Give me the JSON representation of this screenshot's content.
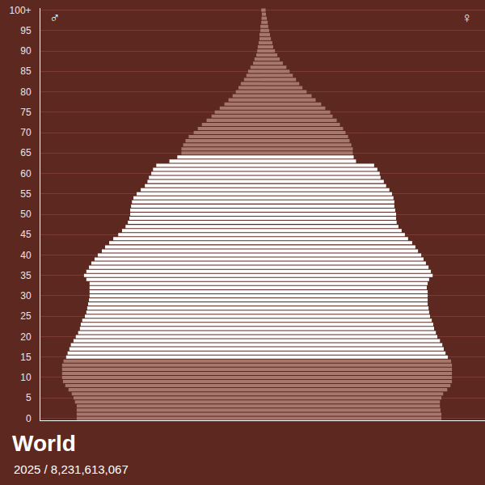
{
  "chart_data": {
    "type": "bar",
    "orientation": "horizontal",
    "title": "World",
    "subtitle": "2025 / 8,231,613,067",
    "categories": [
      "0",
      null,
      null,
      null,
      null,
      "5",
      null,
      null,
      null,
      null,
      "10",
      null,
      null,
      null,
      null,
      "15",
      null,
      null,
      null,
      null,
      "20",
      null,
      null,
      null,
      null,
      "25",
      null,
      null,
      null,
      null,
      "30",
      null,
      null,
      null,
      null,
      "35",
      null,
      null,
      null,
      null,
      "40",
      null,
      null,
      null,
      null,
      "45",
      null,
      null,
      null,
      null,
      "50",
      null,
      null,
      null,
      null,
      "55",
      null,
      null,
      null,
      null,
      "60",
      null,
      null,
      null,
      null,
      "65",
      null,
      null,
      null,
      null,
      "70",
      null,
      null,
      null,
      null,
      "75",
      null,
      null,
      null,
      null,
      "80",
      null,
      null,
      null,
      null,
      "85",
      null,
      null,
      null,
      null,
      "90",
      null,
      null,
      null,
      null,
      "95",
      null,
      null,
      null,
      null,
      "100+"
    ],
    "series": [
      {
        "name": "♂",
        "values": [
          63.6,
          63.6,
          63.6,
          63.6,
          64.2,
          64.7,
          65.3,
          66.4,
          67.5,
          68.3,
          68.6,
          68.6,
          68.6,
          68.6,
          68.1,
          67.2,
          66.7,
          66.1,
          65.6,
          64.7,
          63.9,
          63.1,
          62.5,
          62.2,
          61.7,
          60.8,
          60.3,
          60.0,
          59.7,
          59.4,
          59.2,
          59.2,
          59.2,
          59.2,
          60.3,
          61.1,
          60.3,
          59.4,
          58.6,
          57.5,
          56.4,
          55.0,
          53.9,
          52.5,
          51.1,
          49.4,
          48.1,
          46.9,
          46.1,
          45.6,
          45.3,
          45.3,
          45.0,
          44.7,
          44.2,
          43.1,
          41.7,
          40.3,
          39.4,
          38.9,
          38.1,
          37.5,
          36.4,
          31.9,
          29.2,
          27.8,
          27.8,
          27.2,
          26.4,
          25.3,
          23.6,
          22.2,
          20.8,
          19.2,
          17.5,
          16.4,
          14.7,
          13.1,
          11.7,
          10.3,
          9.2,
          8.3,
          7.5,
          6.4,
          5.6,
          5.0,
          4.2,
          3.3,
          2.8,
          2.2,
          1.9,
          1.7,
          1.4,
          1.1,
          1.1,
          0.8,
          0.8,
          0.5,
          0.4,
          0.3,
          0.5
        ]
      },
      {
        "name": "♀",
        "values": [
          61.1,
          61.1,
          60.8,
          60.6,
          60.6,
          61.1,
          61.7,
          63.1,
          64.2,
          64.7,
          64.7,
          64.7,
          64.7,
          64.7,
          64.4,
          63.3,
          62.5,
          61.9,
          61.4,
          60.6,
          59.7,
          59.2,
          58.6,
          58.3,
          57.8,
          57.2,
          56.9,
          56.7,
          56.4,
          56.4,
          56.4,
          56.4,
          56.1,
          56.4,
          56.9,
          58.1,
          57.5,
          56.7,
          55.8,
          55.0,
          54.2,
          53.1,
          52.2,
          51.1,
          49.7,
          48.6,
          47.5,
          46.4,
          45.8,
          45.6,
          45.6,
          45.3,
          45.0,
          45.0,
          44.7,
          44.2,
          43.3,
          42.2,
          41.4,
          40.3,
          40.0,
          39.2,
          38.1,
          31.9,
          31.1,
          30.8,
          30.8,
          30.3,
          29.7,
          29.2,
          28.3,
          27.5,
          26.4,
          25.3,
          23.9,
          23.1,
          21.4,
          20.0,
          18.1,
          16.7,
          15.0,
          13.6,
          12.5,
          11.4,
          10.3,
          9.2,
          8.1,
          6.9,
          5.8,
          5.0,
          4.2,
          3.6,
          3.3,
          2.8,
          2.5,
          2.2,
          1.9,
          1.7,
          1.4,
          1.1,
          1.0
        ]
      }
    ],
    "colors": [
      "#a6776d",
      "#a6776d",
      "#a6776d",
      "#a6776d",
      "#a6776d",
      "#a6776d",
      "#a6776d",
      "#a6776d",
      "#a6776d",
      "#a6776d",
      "#a6776d",
      "#a6776d",
      "#a6776d",
      "#a6776d",
      "#a6776d",
      "#ffffff",
      "#ffffff",
      "#ffffff",
      "#ffffff",
      "#ffffff",
      "#ffffff",
      "#ffffff",
      "#ffffff",
      "#ffffff",
      "#ffffff",
      "#ffffff",
      "#ffffff",
      "#ffffff",
      "#ffffff",
      "#ffffff",
      "#ffffff",
      "#ffffff",
      "#ffffff",
      "#ffffff",
      "#ffffff",
      "#ffffff",
      "#ffffff",
      "#ffffff",
      "#ffffff",
      "#ffffff",
      "#ffffff",
      "#ffffff",
      "#ffffff",
      "#ffffff",
      "#ffffff",
      "#ffffff",
      "#ffffff",
      "#ffffff",
      "#ffffff",
      "#ffffff",
      "#ffffff",
      "#ffffff",
      "#ffffff",
      "#ffffff",
      "#ffffff",
      "#ffffff",
      "#ffffff",
      "#ffffff",
      "#ffffff",
      "#ffffff",
      "#ffffff",
      "#ffffff",
      "#ffffff",
      "#ffffff",
      "#ffffff",
      "#a6776d",
      "#a6776d",
      "#a6776d",
      "#a6776d",
      "#a6776d",
      "#a6776d",
      "#a6776d",
      "#a6776d",
      "#a6776d",
      "#a6776d",
      "#a6776d",
      "#a6776d",
      "#a6776d",
      "#a6776d",
      "#a6776d",
      "#a6776d",
      "#a6776d",
      "#a6776d",
      "#a6776d",
      "#a6776d",
      "#a6776d",
      "#a6776d",
      "#a6776d",
      "#a6776d",
      "#a6776d",
      "#a6776d",
      "#a6776d",
      "#a6776d",
      "#a6776d",
      "#a6776d",
      "#a6776d",
      "#a6776d",
      "#a6776d",
      "#a6776d",
      "#a6776d",
      "#a6776d"
    ],
    "xlim": [
      0,
      76
    ],
    "tick_labels": "y",
    "grid": true
  }
}
